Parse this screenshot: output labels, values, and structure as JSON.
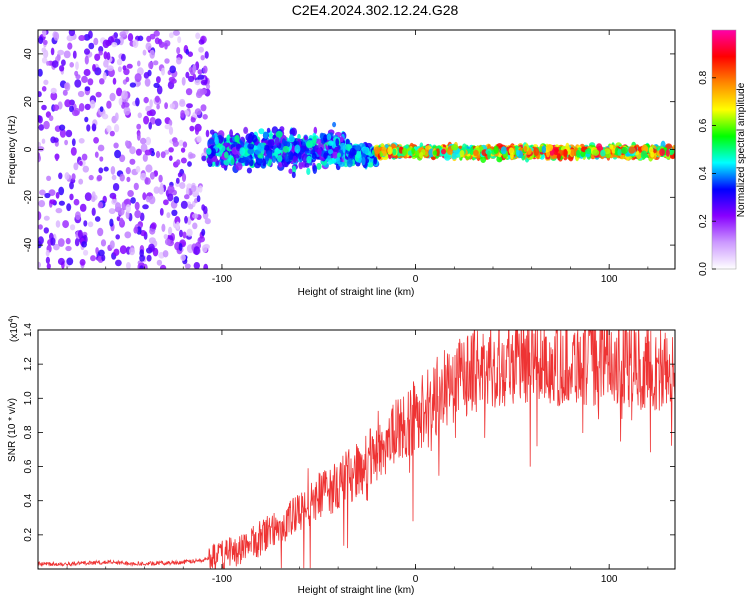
{
  "title": "C2E4.2024.302.12.24.G28",
  "chart_data": [
    {
      "type": "heatmap",
      "xlabel": "Height of straight line (km)",
      "ylabel": "Frequency (Hz)",
      "xlim": [
        -195,
        134
      ],
      "ylim": [
        -50,
        50
      ],
      "xticks": [
        -100,
        0,
        100
      ],
      "yticks": [
        -40,
        -20,
        0,
        20,
        40
      ],
      "colorbar": {
        "label": "Normalized spectral amplitude",
        "range": [
          0,
          1
        ],
        "ticks": [
          0.0,
          0.2,
          0.4,
          0.6,
          0.8
        ],
        "tick_labels": [
          "0.0",
          "0.2",
          "0.4",
          "0.6",
          "0.8"
        ],
        "colormap": [
          "#ffffff",
          "#cc99ff",
          "#8800ff",
          "#0000ff",
          "#00ffff",
          "#00ff00",
          "#ffff00",
          "#ff8800",
          "#ff0000",
          "#ff00aa"
        ]
      },
      "regions": [
        {
          "x": [
            -195,
            -107
          ],
          "freq_center": 0,
          "freq_spread": 50,
          "amplitude": [
            0.05,
            0.3
          ]
        },
        {
          "x": [
            -107,
            -35
          ],
          "freq_center": 0,
          "freq_spread": 7,
          "amplitude": [
            0.2,
            0.5
          ]
        },
        {
          "x": [
            -35,
            -20
          ],
          "freq_center": -2,
          "freq_spread": 4,
          "amplitude": [
            0.3,
            0.5
          ]
        },
        {
          "x": [
            -20,
            134
          ],
          "freq_center": -1,
          "freq_spread": 2,
          "amplitude": [
            0.4,
            0.95
          ]
        }
      ]
    },
    {
      "type": "line",
      "xlabel": "Height of straight line (km)",
      "ylabel": "SNR (10 * v/v)",
      "yscale_label": "(x10",
      "yscale_exp": "4",
      "xlim": [
        -195,
        134
      ],
      "ylim": [
        0,
        1.4
      ],
      "xticks": [
        -100,
        0,
        100
      ],
      "yticks": [
        0.2,
        0.4,
        0.6,
        0.8,
        1.0,
        1.2,
        1.4
      ],
      "ytick_labels": [
        "0.2",
        "0.4",
        "0.6",
        "0.8",
        "1.0",
        "1.2",
        "1.4"
      ],
      "color": "#ee3333",
      "series": [
        {
          "x": [
            -195,
            -180,
            -160,
            -140,
            -120,
            -110,
            -100,
            -90,
            -80,
            -70,
            -60,
            -50,
            -40,
            -30,
            -20,
            -10,
            0,
            10,
            20,
            30,
            40,
            50,
            60,
            70,
            80,
            90,
            100,
            110,
            120,
            134
          ],
          "y": [
            0.03,
            0.03,
            0.04,
            0.03,
            0.04,
            0.05,
            0.08,
            0.12,
            0.18,
            0.25,
            0.32,
            0.42,
            0.5,
            0.58,
            0.68,
            0.8,
            0.9,
            1.0,
            1.1,
            1.17,
            1.2,
            1.22,
            1.22,
            1.2,
            1.22,
            1.2,
            1.24,
            1.2,
            1.18,
            1.15
          ]
        }
      ]
    }
  ]
}
